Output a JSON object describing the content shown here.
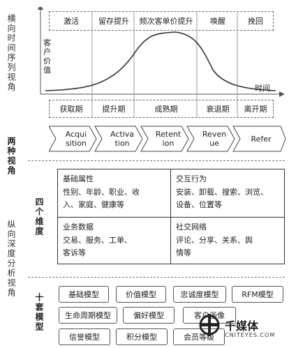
{
  "side": {
    "axis_horizontal": "横向时间序列视角",
    "two_views": "两种视角",
    "four_dims": "四个维度",
    "axis_vertical": "纵向深度分析视角",
    "ten_models": "十套模型"
  },
  "curve": {
    "y_label": "客户价值",
    "x_label": "时间",
    "top_stages": [
      "激活",
      "留存提升",
      "频次客单价提升",
      "唤醒",
      "挽回"
    ],
    "bottom_stages": [
      "获取期",
      "提升期",
      "成熟期",
      "衰退期",
      "离开期"
    ]
  },
  "chevrons": [
    "Acquisition",
    "Activation",
    "Retention",
    "Revenue",
    "Refer"
  ],
  "chevron_lines": [
    [
      "Acqui",
      "sition"
    ],
    [
      "Activa",
      "tion"
    ],
    [
      "Retent",
      "ion"
    ],
    [
      "Reven",
      "ue"
    ],
    [
      "Refer"
    ]
  ],
  "dimensions": {
    "basic": {
      "title": "基础属性",
      "lines": [
        "性别、年龄、职业、收",
        "入、家庭、健康等"
      ]
    },
    "interaction": {
      "title": "交互行为",
      "lines": [
        "安装、卸载、搜索、浏览、",
        "设备、位置等"
      ]
    },
    "business": {
      "title": "业务数据",
      "lines": [
        "交易、服务、工单、",
        "客诉等"
      ]
    },
    "social": {
      "title": "社交网络",
      "lines": [
        "评论、分享、关系、舆",
        "情等"
      ]
    }
  },
  "models": {
    "row1": [
      "基础模型",
      "价值模型",
      "忠诚度模型",
      "RFM模型"
    ],
    "row2": [
      "生命周期模型",
      "偏好模型",
      "客户画像"
    ],
    "row3": [
      "信誉模型",
      "积分模型",
      "会员等级"
    ]
  },
  "watermark": {
    "name": "千媒体",
    "site": "CNITEYES.COM"
  },
  "colors": {
    "line": "#555555",
    "curve": "#333333",
    "grid": "#999999"
  }
}
